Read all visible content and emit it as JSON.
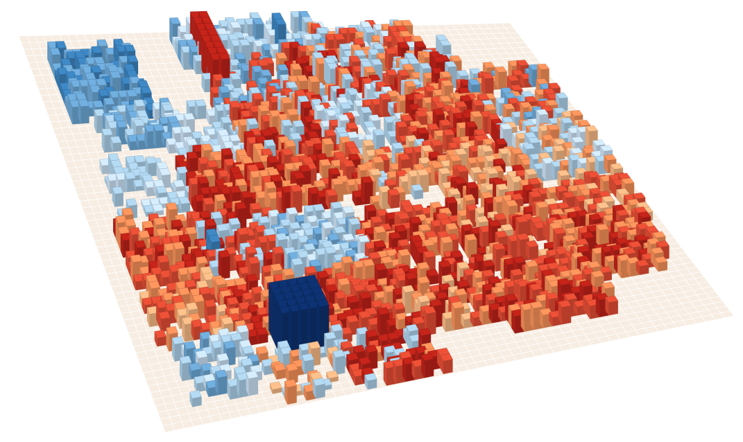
{
  "palette": {
    "ground_fill": "#f7ede2",
    "grid_line": "#ffffff",
    "dark_navy": "#0c2f6b",
    "strong_blue": "#3a7fb8",
    "mid_blue": "#6aa3d0",
    "light_blue": "#a8cbe3",
    "pale_blue": "#c6dcee",
    "peach": "#f2b482",
    "orange": "#ef8c57",
    "red_orange": "#dd4b33",
    "dark_red": "#b82118"
  },
  "legend_order": [
    "dark_navy",
    "strong_blue",
    "mid_blue",
    "light_blue",
    "pale_blue",
    "peach",
    "orange",
    "red_orange",
    "dark_red"
  ]
}
